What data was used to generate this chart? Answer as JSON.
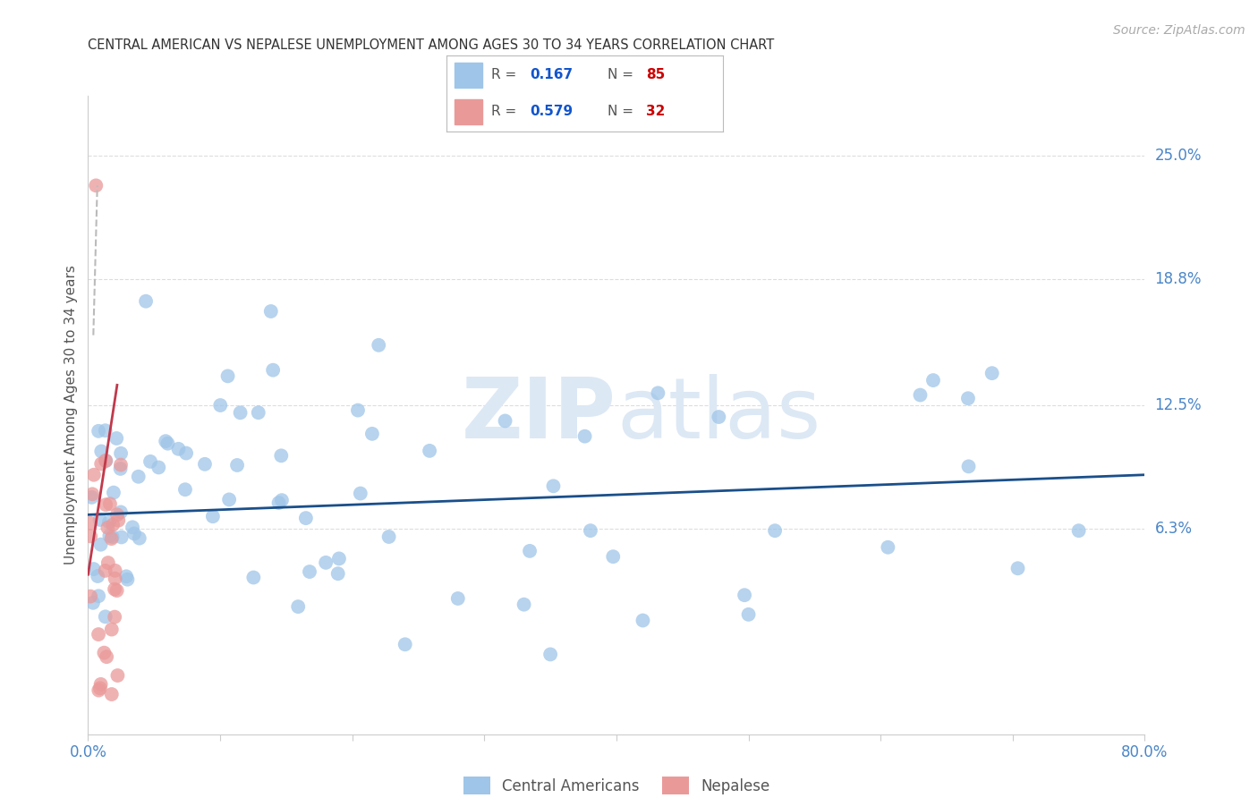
{
  "title": "CENTRAL AMERICAN VS NEPALESE UNEMPLOYMENT AMONG AGES 30 TO 34 YEARS CORRELATION CHART",
  "source": "Source: ZipAtlas.com",
  "ylabel": "Unemployment Among Ages 30 to 34 years",
  "xlim": [
    0,
    0.8
  ],
  "ylim": [
    -0.04,
    0.28
  ],
  "ytick_labels_right": [
    "25.0%",
    "18.8%",
    "12.5%",
    "6.3%"
  ],
  "ytick_vals_right": [
    0.25,
    0.188,
    0.125,
    0.063
  ],
  "blue_R": 0.167,
  "blue_N": 85,
  "pink_R": 0.579,
  "pink_N": 32,
  "blue_color": "#9fc5e8",
  "pink_color": "#ea9999",
  "trendline_blue_color": "#1a4f8a",
  "trendline_pink_color": "#c0394b",
  "trendline_pink_dashed_color": "#bbbbbb",
  "legend_R_color": "#1155cc",
  "legend_N_color": "#cc0000",
  "watermark_zip": "ZIP",
  "watermark_atlas": "atlas",
  "background_color": "#ffffff",
  "grid_color": "#dddddd",
  "tick_color": "#4a86c8",
  "seed": 42
}
